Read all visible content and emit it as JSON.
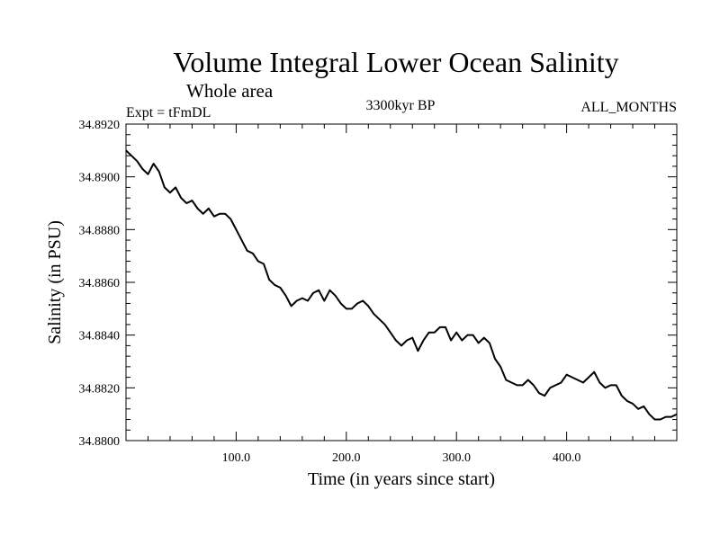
{
  "chart_data": {
    "type": "line",
    "title": "Volume Integral Lower Ocean Salinity",
    "subtitle": "Whole area",
    "experiment_label": "Expt = tFmDL",
    "period_label": "3300kyr BP",
    "months_label": "ALL_MONTHS",
    "xlabel": "Time (in years since start)",
    "ylabel": "Salinity (in PSU)",
    "xlim": [
      0,
      500
    ],
    "ylim": [
      34.88,
      34.892
    ],
    "x_ticks": [
      100,
      200,
      300,
      400
    ],
    "x_tick_labels": [
      "100.0",
      "200.0",
      "300.0",
      "400.0"
    ],
    "y_ticks": [
      34.88,
      34.882,
      34.884,
      34.886,
      34.888,
      34.89,
      34.892
    ],
    "y_tick_labels": [
      "34.8800",
      "34.8820",
      "34.8840",
      "34.8860",
      "34.8880",
      "34.8900",
      "34.8920"
    ],
    "series": [
      {
        "name": "Volume integral lower ocean salinity",
        "x": [
          0,
          5,
          10,
          15,
          20,
          25,
          30,
          35,
          40,
          45,
          50,
          55,
          60,
          65,
          70,
          75,
          80,
          85,
          90,
          95,
          100,
          105,
          110,
          115,
          120,
          125,
          130,
          135,
          140,
          145,
          150,
          155,
          160,
          165,
          170,
          175,
          180,
          185,
          190,
          195,
          200,
          205,
          210,
          215,
          220,
          225,
          230,
          235,
          240,
          245,
          250,
          255,
          260,
          265,
          270,
          275,
          280,
          285,
          290,
          295,
          300,
          305,
          310,
          315,
          320,
          325,
          330,
          335,
          340,
          345,
          350,
          355,
          360,
          365,
          370,
          375,
          380,
          385,
          390,
          395,
          400,
          405,
          410,
          415,
          420,
          425,
          430,
          435,
          440,
          445,
          450,
          455,
          460,
          465,
          470,
          475,
          480,
          485,
          490,
          495,
          500
        ],
        "values": [
          34.891,
          34.8908,
          34.8906,
          34.8903,
          34.8901,
          34.8905,
          34.8902,
          34.8896,
          34.8894,
          34.8896,
          34.8892,
          34.889,
          34.8891,
          34.8888,
          34.8886,
          34.8888,
          34.8885,
          34.8886,
          34.8886,
          34.8884,
          34.888,
          34.8876,
          34.8872,
          34.8871,
          34.8868,
          34.8867,
          34.8861,
          34.8859,
          34.8858,
          34.8855,
          34.8851,
          34.8853,
          34.8854,
          34.8853,
          34.8856,
          34.8857,
          34.8853,
          34.8857,
          34.8855,
          34.8852,
          34.885,
          34.885,
          34.8852,
          34.8853,
          34.8851,
          34.8848,
          34.8846,
          34.8844,
          34.8841,
          34.8838,
          34.8836,
          34.8838,
          34.8839,
          34.8834,
          34.8838,
          34.8841,
          34.8841,
          34.8843,
          34.8843,
          34.8838,
          34.8841,
          34.8838,
          34.884,
          34.884,
          34.8837,
          34.8839,
          34.8837,
          34.8831,
          34.8828,
          34.8823,
          34.8822,
          34.8821,
          34.8821,
          34.8823,
          34.8821,
          34.8818,
          34.8817,
          34.882,
          34.8821,
          34.8822,
          34.8825,
          34.8824,
          34.8823,
          34.8822,
          34.8824,
          34.8826,
          34.8822,
          34.882,
          34.8821,
          34.8821,
          34.8817,
          34.8815,
          34.8814,
          34.8812,
          34.8813,
          34.881,
          34.8808,
          34.8808,
          34.8809,
          34.8809,
          34.881
        ]
      }
    ]
  }
}
